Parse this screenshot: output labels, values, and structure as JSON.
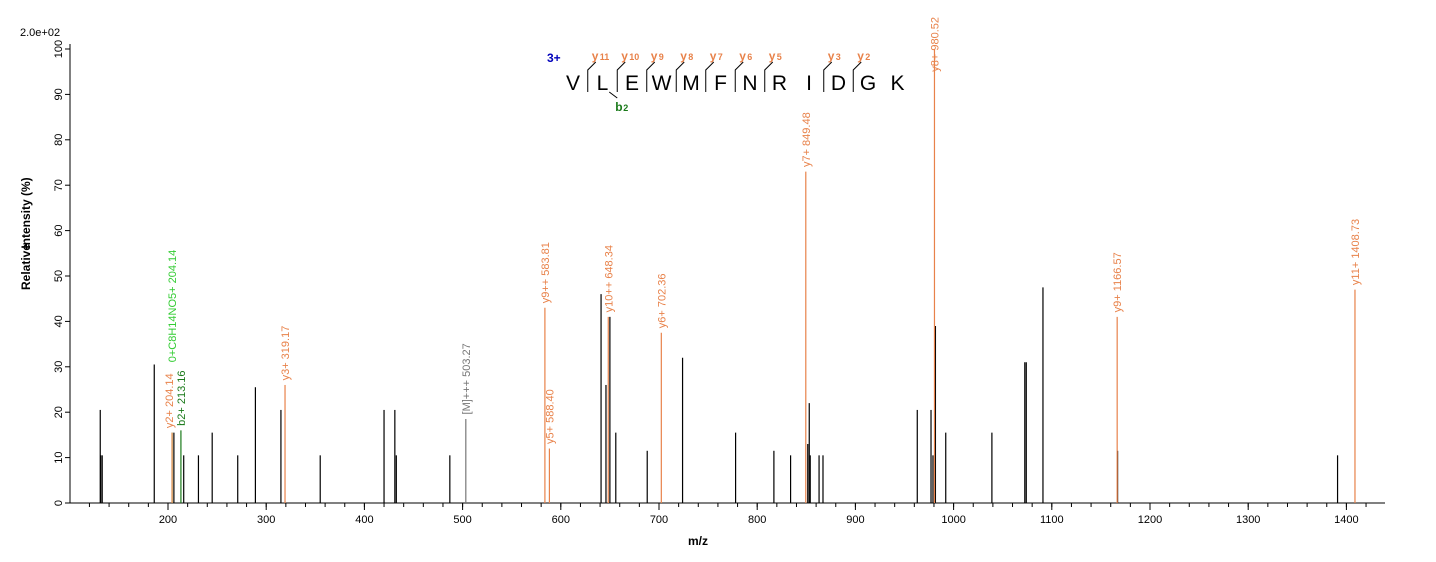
{
  "chart_data": {
    "type": "bar",
    "subtype": "mass-spectrum",
    "scale_label": "2.0e+02",
    "xlabel": "m/z",
    "ylabel_parts": [
      "Relative",
      "Intensity (%)"
    ],
    "xlim": [
      70,
      1440
    ],
    "ylim": [
      0,
      100
    ],
    "x_ticks": [
      200,
      300,
      400,
      500,
      600,
      700,
      800,
      900,
      1000,
      1100,
      1200,
      1300,
      1400
    ],
    "x_minor_step": 20,
    "y_ticks": [
      0,
      10,
      20,
      30,
      40,
      50,
      60,
      70,
      80,
      90,
      100
    ],
    "colors": {
      "unassigned": "#000000",
      "y_ion": "#e8824a",
      "b_ion": "#1a7a1a",
      "neutral_loss": "#33cc33",
      "precursor": "#777777",
      "charge": "#0000bb"
    },
    "unassigned_peaks": [
      {
        "mz": 131.0,
        "intensity": 20.5
      },
      {
        "mz": 131.5,
        "intensity": 10.5
      },
      {
        "mz": 133.0,
        "intensity": 10.5
      },
      {
        "mz": 186.0,
        "intensity": 30.5
      },
      {
        "mz": 206.0,
        "intensity": 15.5
      },
      {
        "mz": 216.0,
        "intensity": 10.5
      },
      {
        "mz": 231.0,
        "intensity": 10.5
      },
      {
        "mz": 245.0,
        "intensity": 15.5
      },
      {
        "mz": 271.0,
        "intensity": 10.5
      },
      {
        "mz": 289.0,
        "intensity": 25.5
      },
      {
        "mz": 315.0,
        "intensity": 20.5
      },
      {
        "mz": 355.0,
        "intensity": 10.5
      },
      {
        "mz": 420.0,
        "intensity": 20.5
      },
      {
        "mz": 431.0,
        "intensity": 20.5
      },
      {
        "mz": 432.5,
        "intensity": 10.5
      },
      {
        "mz": 487.0,
        "intensity": 10.5
      },
      {
        "mz": 641.0,
        "intensity": 46.0
      },
      {
        "mz": 646.0,
        "intensity": 26.0
      },
      {
        "mz": 650.0,
        "intensity": 41.0
      },
      {
        "mz": 656.0,
        "intensity": 15.5
      },
      {
        "mz": 688.0,
        "intensity": 11.5
      },
      {
        "mz": 724.0,
        "intensity": 32.0
      },
      {
        "mz": 778.0,
        "intensity": 15.5
      },
      {
        "mz": 817.0,
        "intensity": 11.5
      },
      {
        "mz": 834.0,
        "intensity": 10.5
      },
      {
        "mz": 851.5,
        "intensity": 13.0
      },
      {
        "mz": 853.0,
        "intensity": 22.0
      },
      {
        "mz": 854.0,
        "intensity": 10.5
      },
      {
        "mz": 863.0,
        "intensity": 10.5
      },
      {
        "mz": 867.0,
        "intensity": 10.5
      },
      {
        "mz": 963.0,
        "intensity": 20.5
      },
      {
        "mz": 977.0,
        "intensity": 20.5
      },
      {
        "mz": 979.0,
        "intensity": 10.5
      },
      {
        "mz": 981.5,
        "intensity": 39.0
      },
      {
        "mz": 992.0,
        "intensity": 15.5
      },
      {
        "mz": 1039.0,
        "intensity": 15.5
      },
      {
        "mz": 1072.5,
        "intensity": 31.0
      },
      {
        "mz": 1074.0,
        "intensity": 31.0
      },
      {
        "mz": 1091.0,
        "intensity": 47.5
      },
      {
        "mz": 1167.0,
        "intensity": 11.5
      },
      {
        "mz": 1391.0,
        "intensity": 10.5
      }
    ],
    "annotated_peaks": [
      {
        "mz": 204.14,
        "intensity": 15.5,
        "kind": "neutral_loss",
        "label": "0+C8H14NO5+ 204.14",
        "label_base": 31.0
      },
      {
        "mz": 204.14,
        "intensity": 15.5,
        "kind": "y_ion",
        "label": "y2+ 204.14",
        "label_base": 16.5,
        "label_offset": -3
      },
      {
        "mz": 213.16,
        "intensity": 16.0,
        "kind": "b_ion",
        "label": "b2+ 213.16",
        "label_base": 17.0
      },
      {
        "mz": 319.17,
        "intensity": 26.0,
        "kind": "y_ion",
        "label": "y3+ 319.17",
        "label_base": 27.0
      },
      {
        "mz": 503.27,
        "intensity": 18.5,
        "kind": "precursor",
        "label": "[M]+++ 503.27",
        "label_base": 19.5
      },
      {
        "mz": 583.81,
        "intensity": 43.0,
        "kind": "y_ion",
        "label": "y9++ 583.81",
        "label_base": 44.0
      },
      {
        "mz": 588.4,
        "intensity": 12.0,
        "kind": "y_ion",
        "label": "y5+ 588.40",
        "label_base": 13.0
      },
      {
        "mz": 648.34,
        "intensity": 41.0,
        "kind": "y_ion",
        "label": "y10++ 648.34",
        "label_base": 42.0
      },
      {
        "mz": 702.36,
        "intensity": 37.5,
        "kind": "y_ion",
        "label": "y6+ 702.36",
        "label_base": 38.5
      },
      {
        "mz": 849.48,
        "intensity": 73.0,
        "kind": "y_ion",
        "label": "y7+ 849.48",
        "label_base": 74.0
      },
      {
        "mz": 980.52,
        "intensity": 100.0,
        "kind": "y_ion",
        "label": "y8+ 980.52",
        "label_base": 95.0
      },
      {
        "mz": 1166.57,
        "intensity": 41.0,
        "kind": "y_ion",
        "label": "y9+ 1166.57",
        "label_base": 42.0
      },
      {
        "mz": 1408.73,
        "intensity": 47.0,
        "kind": "y_ion",
        "label": "y11+ 1408.73",
        "label_base": 48.0
      }
    ],
    "sequence": {
      "charge": "3+",
      "residues": [
        "V",
        "L",
        "E",
        "W",
        "M",
        "F",
        "N",
        "R",
        "I",
        "D",
        "G",
        "K"
      ],
      "y_ions": [
        {
          "after": 1,
          "label": "y",
          "index": "11"
        },
        {
          "after": 2,
          "label": "y",
          "index": "10"
        },
        {
          "after": 3,
          "label": "y",
          "index": "9"
        },
        {
          "after": 4,
          "label": "y",
          "index": "8"
        },
        {
          "after": 5,
          "label": "y",
          "index": "7"
        },
        {
          "after": 6,
          "label": "y",
          "index": "6"
        },
        {
          "after": 7,
          "label": "y",
          "index": "5"
        },
        {
          "after": 9,
          "label": "y",
          "index": "3"
        },
        {
          "after": 10,
          "label": "y",
          "index": "2"
        }
      ],
      "b_ions": [
        {
          "after": 2,
          "label": "b",
          "index": "2"
        }
      ]
    }
  }
}
